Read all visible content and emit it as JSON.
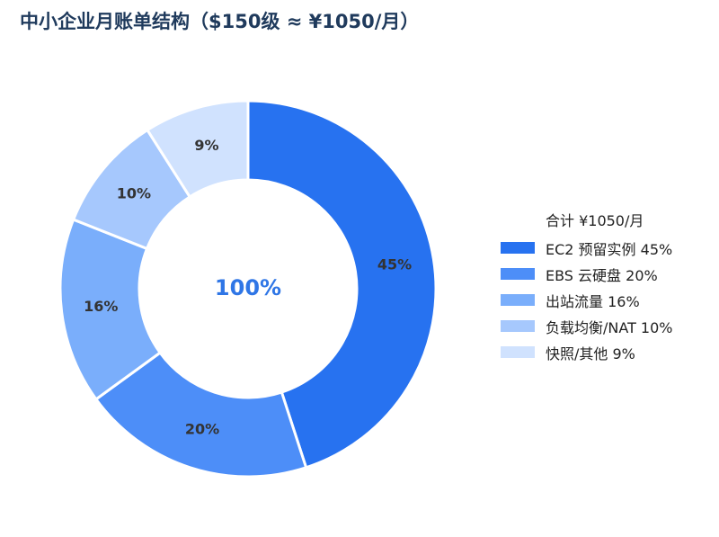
{
  "title": "中小企业月账单结构（$150级 ≈ ¥1050/月）",
  "chart_data": {
    "type": "pie",
    "title": "中小企业月账单结构（$150级 ≈ ¥1050/月）",
    "center_label": "100%",
    "legend_title": "合计 ¥1050/月",
    "legend_position": "right",
    "slices": [
      {
        "legend": "EC2 预留实例  45%",
        "label": "45%",
        "value": 45,
        "color": "#2772f0"
      },
      {
        "legend": "EBS 云硬盘  20%",
        "label": "20%",
        "value": 20,
        "color": "#4d8ef8"
      },
      {
        "legend": "出站流量  16%",
        "label": "16%",
        "value": 16,
        "color": "#7aaefb"
      },
      {
        "legend": "负载均衡/NAT  10%",
        "label": "10%",
        "value": 10,
        "color": "#a6c8fd"
      },
      {
        "legend": "快照/其他  9%",
        "label": "9%",
        "value": 9,
        "color": "#d0e2fe"
      }
    ],
    "center_color": "#2f76e6"
  }
}
